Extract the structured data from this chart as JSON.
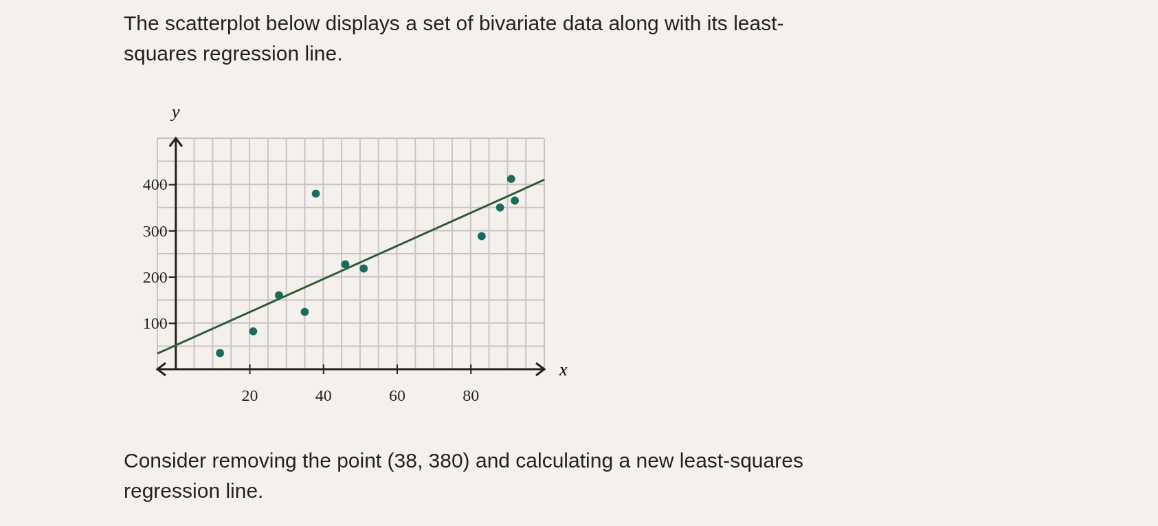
{
  "chart_data": {
    "type": "scatter",
    "title": "The scatterplot below displays a set of bivariate data along with its least-squares regression line.",
    "xlabel": "x",
    "ylabel": "y",
    "annotations": [
      "Consider removing the point (38, 380) and calculating a new least-squares regression line."
    ],
    "xlim": [
      -5,
      100
    ],
    "ylim": [
      0,
      500
    ],
    "xticks": [
      {
        "value": -5,
        "label": null
      },
      {
        "value": 5,
        "label": null
      },
      {
        "value": 10,
        "label": null
      },
      {
        "value": 15,
        "label": null
      },
      20,
      {
        "value": 25,
        "label": null
      },
      {
        "value": 30,
        "label": null
      },
      {
        "value": 35,
        "label": null
      },
      40,
      {
        "value": 45,
        "label": null
      },
      {
        "value": 50,
        "label": null
      },
      {
        "value": 55,
        "label": null
      },
      60,
      {
        "value": 65,
        "label": null
      },
      {
        "value": 70,
        "label": null
      },
      {
        "value": 75,
        "label": null
      },
      80,
      {
        "value": 85,
        "label": null
      },
      {
        "value": 90,
        "label": null
      },
      {
        "value": 95,
        "label": null
      },
      {
        "value": 100,
        "label": null
      }
    ],
    "yticks": [
      {
        "value": 50,
        "label": null
      },
      100,
      {
        "value": 150,
        "label": null
      },
      200,
      {
        "value": 250,
        "label": null
      },
      300,
      {
        "value": 350,
        "label": null
      },
      400,
      {
        "value": 450,
        "label": null
      },
      {
        "value": 500,
        "label": null
      }
    ],
    "grid": true,
    "series": [
      {
        "marker": "circle",
        "color": "#1d6a5a",
        "x": [
          12,
          21,
          28,
          35,
          38,
          46,
          51,
          83,
          88,
          91,
          92
        ],
        "values": [
          35,
          82,
          160,
          124,
          380,
          227,
          218,
          288,
          350,
          412,
          365
        ]
      },
      {
        "type": "line",
        "color": "#2f5a3a",
        "x": [
          -5,
          100
        ],
        "values": [
          34,
          410
        ]
      }
    ]
  }
}
